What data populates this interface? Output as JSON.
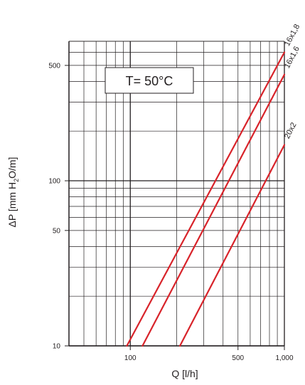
{
  "chart_data": {
    "type": "line",
    "x_scale": "log",
    "y_scale": "log",
    "xlim": [
      40,
      1000
    ],
    "ylim": [
      10,
      700
    ],
    "xlabel": "Q [l/h]",
    "ylabel_parts": [
      "ΔP [mm H",
      "2",
      "O/m]"
    ],
    "x_ticks": [
      {
        "value": 100,
        "label": "100"
      },
      {
        "value": 500,
        "label": "500"
      },
      {
        "value": 1000,
        "label": "1,000"
      }
    ],
    "y_ticks": [
      {
        "value": 10,
        "label": "10"
      },
      {
        "value": 50,
        "label": "50"
      },
      {
        "value": 100,
        "label": "100"
      },
      {
        "value": 500,
        "label": "500"
      }
    ],
    "grid": true,
    "annotation": "T= 50°C",
    "line_color": "#d8232a",
    "series": [
      {
        "name": "16x1,8",
        "points": [
          [
            95,
            10
          ],
          [
            1000,
            600
          ]
        ]
      },
      {
        "name": "16x1,6",
        "points": [
          [
            120,
            10
          ],
          [
            1000,
            440
          ]
        ]
      },
      {
        "name": "20x2",
        "points": [
          [
            210,
            10
          ],
          [
            1000,
            165
          ]
        ]
      }
    ]
  }
}
